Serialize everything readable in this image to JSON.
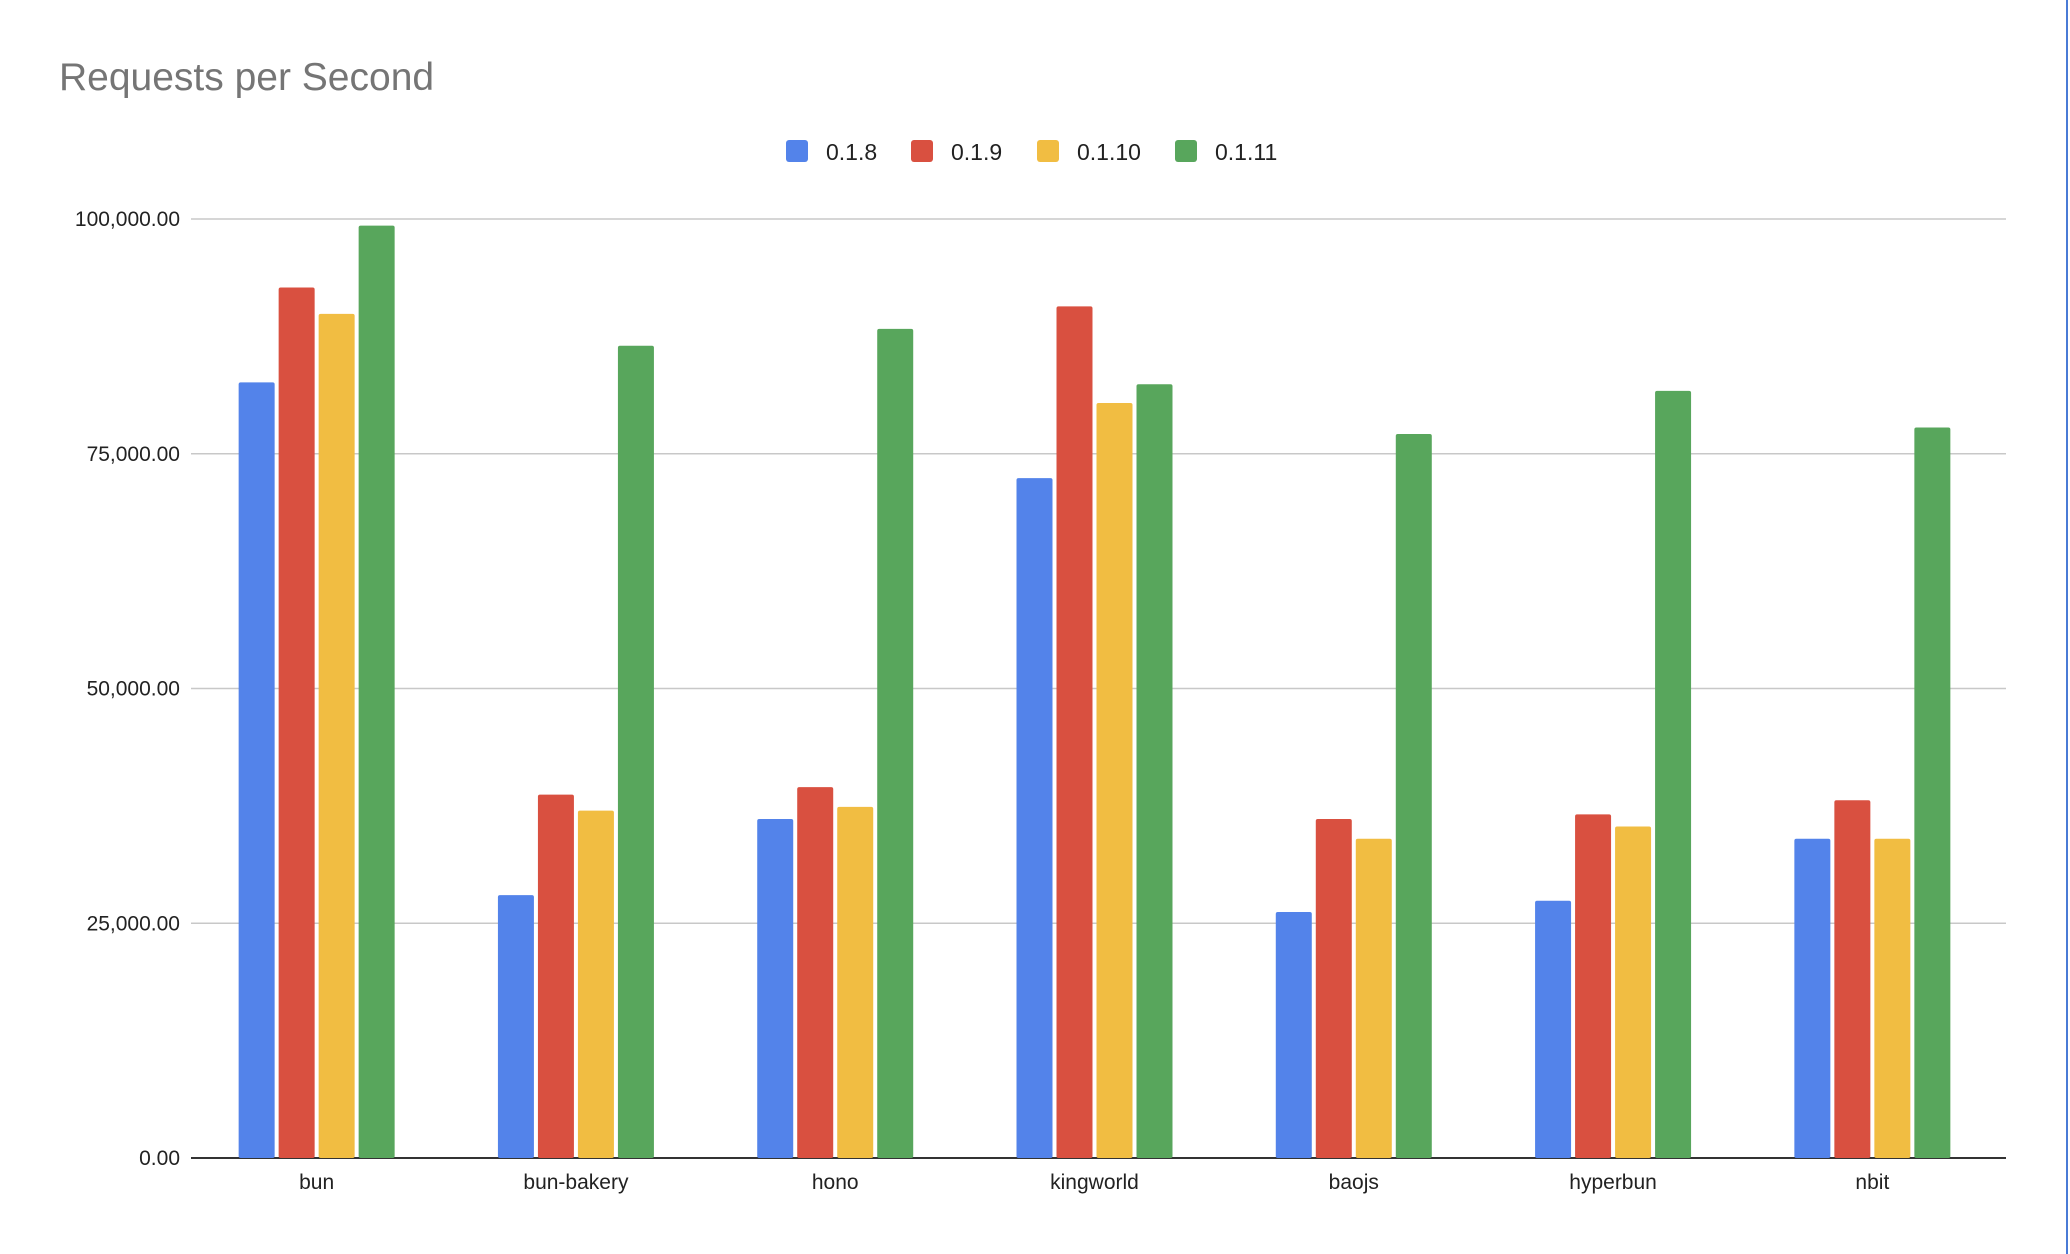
{
  "chart_data": {
    "type": "bar",
    "title": "Requests per Second",
    "xlabel": "",
    "ylabel": "",
    "ylim": [
      0,
      100000
    ],
    "yticks": [
      0,
      25000,
      50000,
      75000,
      100000
    ],
    "ytick_labels": [
      "0.00",
      "25,000.00",
      "50,000.00",
      "75,000.00",
      "100,000.00"
    ],
    "grid": true,
    "legend_position": "top-center",
    "categories": [
      "bun",
      "bun-bakery",
      "hono",
      "kingworld",
      "baojs",
      "hyperbun",
      "nbit"
    ],
    "series": [
      {
        "name": "0.1.8",
        "color": "#5383EA",
        "values": [
          82600,
          28000,
          36100,
          72400,
          26200,
          27400,
          34000
        ]
      },
      {
        "name": "0.1.9",
        "color": "#D95040",
        "values": [
          92700,
          38700,
          39500,
          90700,
          36100,
          36600,
          38100
        ]
      },
      {
        "name": "0.1.10",
        "color": "#F1BD42",
        "values": [
          89900,
          37000,
          37400,
          80400,
          34000,
          35300,
          34000
        ]
      },
      {
        "name": "0.1.11",
        "color": "#58A65C",
        "values": [
          99300,
          86500,
          88300,
          82400,
          77100,
          81700,
          77800
        ]
      }
    ]
  }
}
